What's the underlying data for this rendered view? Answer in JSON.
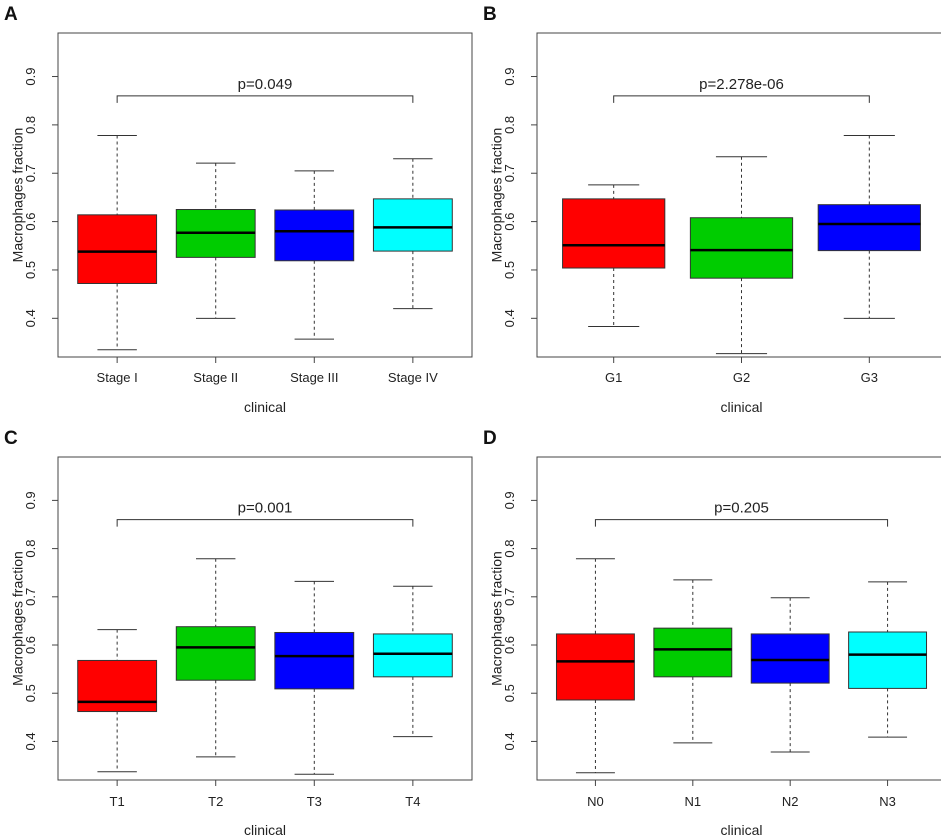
{
  "chart_data": [
    {
      "panel": "A",
      "type": "box",
      "xlabel": "clinical",
      "ylabel": "Macrophages fraction",
      "ylim": [
        0.32,
        0.99
      ],
      "yticks": [
        "0.4",
        "0.5",
        "0.6",
        "0.7",
        "0.8",
        "0.9"
      ],
      "pvalue": "p=0.049",
      "groups": [
        {
          "name": "Stage I",
          "color": "#ff0000",
          "min": 0.335,
          "q1": 0.472,
          "median": 0.538,
          "q3": 0.614,
          "max": 0.778
        },
        {
          "name": "Stage II",
          "color": "#00cc00",
          "min": 0.4,
          "q1": 0.526,
          "median": 0.577,
          "q3": 0.625,
          "max": 0.721
        },
        {
          "name": "Stage III",
          "color": "#0000ff",
          "min": 0.357,
          "q1": 0.519,
          "median": 0.58,
          "q3": 0.624,
          "max": 0.705
        },
        {
          "name": "Stage IV",
          "color": "#00ffff",
          "min": 0.42,
          "q1": 0.539,
          "median": 0.588,
          "q3": 0.647,
          "max": 0.73
        }
      ]
    },
    {
      "panel": "B",
      "type": "box",
      "xlabel": "clinical",
      "ylabel": "Macrophages fraction",
      "ylim": [
        0.32,
        0.99
      ],
      "yticks": [
        "0.4",
        "0.5",
        "0.6",
        "0.7",
        "0.8",
        "0.9"
      ],
      "pvalue": "p=2.278e-06",
      "groups": [
        {
          "name": "G1",
          "color": "#ff0000",
          "min": 0.383,
          "q1": 0.504,
          "median": 0.551,
          "q3": 0.647,
          "max": 0.676
        },
        {
          "name": "G2",
          "color": "#00cc00",
          "min": 0.327,
          "q1": 0.483,
          "median": 0.541,
          "q3": 0.608,
          "max": 0.734
        },
        {
          "name": "G3",
          "color": "#0000ff",
          "min": 0.4,
          "q1": 0.54,
          "median": 0.595,
          "q3": 0.635,
          "max": 0.778
        }
      ]
    },
    {
      "panel": "C",
      "type": "box",
      "xlabel": "clinical",
      "ylabel": "Macrophages fraction",
      "ylim": [
        0.32,
        0.99
      ],
      "yticks": [
        "0.4",
        "0.5",
        "0.6",
        "0.7",
        "0.8",
        "0.9"
      ],
      "pvalue": "p=0.001",
      "groups": [
        {
          "name": "T1",
          "color": "#ff0000",
          "min": 0.337,
          "q1": 0.462,
          "median": 0.482,
          "q3": 0.568,
          "max": 0.632
        },
        {
          "name": "T2",
          "color": "#00cc00",
          "min": 0.368,
          "q1": 0.527,
          "median": 0.595,
          "q3": 0.638,
          "max": 0.779
        },
        {
          "name": "T3",
          "color": "#0000ff",
          "min": 0.332,
          "q1": 0.509,
          "median": 0.577,
          "q3": 0.626,
          "max": 0.732
        },
        {
          "name": "T4",
          "color": "#00ffff",
          "min": 0.41,
          "q1": 0.534,
          "median": 0.582,
          "q3": 0.623,
          "max": 0.722
        }
      ]
    },
    {
      "panel": "D",
      "type": "box",
      "xlabel": "clinical",
      "ylabel": "Macrophages fraction",
      "ylim": [
        0.32,
        0.99
      ],
      "yticks": [
        "0.4",
        "0.5",
        "0.6",
        "0.7",
        "0.8",
        "0.9"
      ],
      "pvalue": "p=0.205",
      "groups": [
        {
          "name": "N0",
          "color": "#ff0000",
          "min": 0.335,
          "q1": 0.486,
          "median": 0.566,
          "q3": 0.623,
          "max": 0.779
        },
        {
          "name": "N1",
          "color": "#00cc00",
          "min": 0.397,
          "q1": 0.534,
          "median": 0.591,
          "q3": 0.635,
          "max": 0.735
        },
        {
          "name": "N2",
          "color": "#0000ff",
          "min": 0.378,
          "q1": 0.521,
          "median": 0.569,
          "q3": 0.623,
          "max": 0.698
        },
        {
          "name": "N3",
          "color": "#00ffff",
          "min": 0.409,
          "q1": 0.51,
          "median": 0.58,
          "q3": 0.627,
          "max": 0.731
        }
      ]
    }
  ]
}
